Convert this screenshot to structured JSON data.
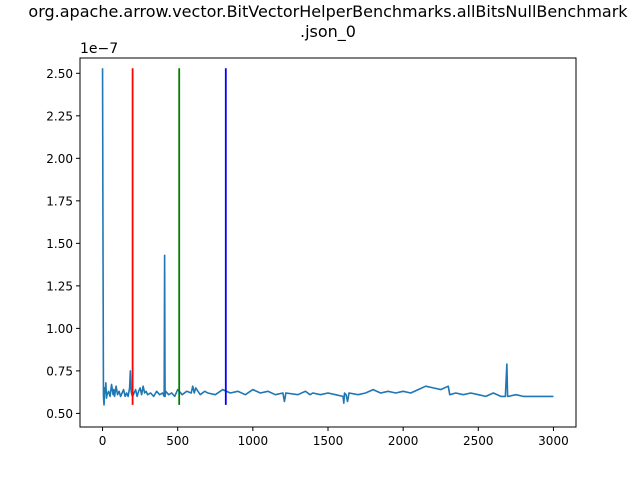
{
  "chart_data": {
    "type": "line",
    "title_line1": "org.apache.arrow.vector.BitVectorHelperBenchmarks.allBitsNullBenchmark",
    "title_line2": ".json_0",
    "xlabel": "",
    "ylabel": "",
    "y_scale_label": "1e−7",
    "xlim": [
      -150,
      3150
    ],
    "ylim": [
      0.42,
      2.59
    ],
    "x_ticks": [
      0,
      500,
      1000,
      1500,
      2000,
      2500,
      3000
    ],
    "x_tick_labels": [
      "0",
      "500",
      "1000",
      "1500",
      "2000",
      "2500",
      "3000"
    ],
    "y_ticks": [
      0.5,
      0.75,
      1.0,
      1.25,
      1.5,
      1.75,
      2.0,
      2.25,
      2.5
    ],
    "y_tick_labels": [
      "0.50",
      "0.75",
      "1.00",
      "1.25",
      "1.50",
      "1.75",
      "2.00",
      "2.25",
      "2.50"
    ],
    "grid": false,
    "series": [
      {
        "color": "#1f77b4",
        "x": [
          0,
          3,
          6,
          10,
          14,
          18,
          22,
          26,
          30,
          40,
          50,
          60,
          70,
          75,
          80,
          90,
          100,
          110,
          120,
          130,
          140,
          150,
          160,
          170,
          180,
          185,
          190,
          195,
          200,
          210,
          220,
          230,
          240,
          250,
          260,
          270,
          280,
          290,
          300,
          320,
          340,
          360,
          380,
          400,
          410,
          413,
          416,
          420,
          440,
          460,
          480,
          500,
          530,
          560,
          590,
          600,
          610,
          620,
          650,
          680,
          700,
          750,
          800,
          850,
          900,
          950,
          1000,
          1050,
          1100,
          1150,
          1200,
          1210,
          1220,
          1300,
          1350,
          1380,
          1400,
          1450,
          1500,
          1550,
          1600,
          1605,
          1610,
          1620,
          1630,
          1640,
          1700,
          1750,
          1800,
          1850,
          1900,
          1950,
          2000,
          2050,
          2100,
          2150,
          2200,
          2250,
          2300,
          2310,
          2350,
          2400,
          2450,
          2500,
          2550,
          2600,
          2650,
          2680,
          2690,
          2695,
          2700,
          2750,
          2800,
          2850,
          2900,
          2950,
          3000
        ],
        "y": [
          2.53,
          1.5,
          0.6,
          0.55,
          0.65,
          0.62,
          0.68,
          0.59,
          0.61,
          0.63,
          0.6,
          0.67,
          0.61,
          0.64,
          0.6,
          0.66,
          0.61,
          0.63,
          0.6,
          0.62,
          0.64,
          0.6,
          0.62,
          0.6,
          0.65,
          0.75,
          0.63,
          0.61,
          0.6,
          0.62,
          0.64,
          0.6,
          0.63,
          0.65,
          0.61,
          0.66,
          0.62,
          0.63,
          0.61,
          0.62,
          0.6,
          0.63,
          0.61,
          0.62,
          0.6,
          1.43,
          0.6,
          0.63,
          0.61,
          0.62,
          0.6,
          0.64,
          0.61,
          0.63,
          0.62,
          0.66,
          0.62,
          0.65,
          0.61,
          0.63,
          0.62,
          0.61,
          0.64,
          0.62,
          0.63,
          0.61,
          0.64,
          0.62,
          0.63,
          0.61,
          0.62,
          0.57,
          0.62,
          0.61,
          0.63,
          0.61,
          0.62,
          0.61,
          0.62,
          0.61,
          0.6,
          0.56,
          0.62,
          0.61,
          0.57,
          0.62,
          0.61,
          0.62,
          0.64,
          0.62,
          0.63,
          0.62,
          0.63,
          0.62,
          0.64,
          0.66,
          0.65,
          0.64,
          0.66,
          0.61,
          0.62,
          0.61,
          0.62,
          0.61,
          0.6,
          0.62,
          0.6,
          0.6,
          0.79,
          0.6,
          0.6,
          0.61,
          0.6,
          0.6,
          0.6,
          0.6,
          0.6
        ]
      }
    ],
    "vlines": [
      {
        "x": 200,
        "color": "#ff0000",
        "y_from": 0.55,
        "y_to": 2.53
      },
      {
        "x": 510,
        "color": "#008000",
        "y_from": 0.55,
        "y_to": 2.53
      },
      {
        "x": 820,
        "color": "#0000ff",
        "y_from": 0.55,
        "y_to": 2.53
      }
    ]
  }
}
